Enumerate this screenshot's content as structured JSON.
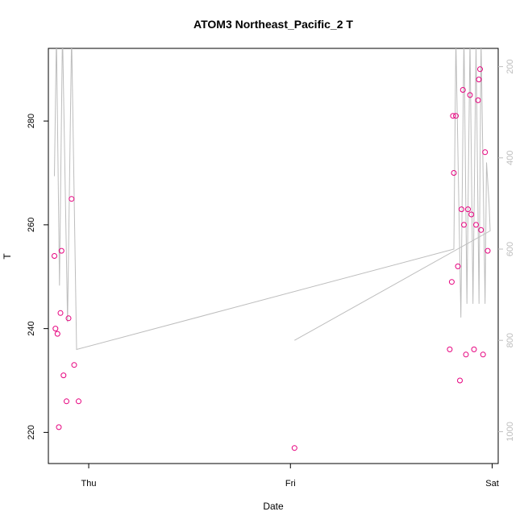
{
  "chart_data": {
    "type": "scatter",
    "title": "ATOM3 Northeast_Pacific_2 T",
    "xlabel": "Date",
    "ylabel": "T",
    "x_ticks": [
      "Thu",
      "Fri",
      "Sat"
    ],
    "xlim": [
      -0.2,
      2.03
    ],
    "ylim": [
      214,
      294
    ],
    "y_ticks": [
      220,
      240,
      260,
      280
    ],
    "grid": false,
    "legend": "none",
    "colors": {
      "points": "#e6007e",
      "line": "#bdbdbd",
      "right_axis": "#bdbdbd"
    },
    "points": [
      {
        "x": -0.17,
        "y": 254
      },
      {
        "x": -0.165,
        "y": 240
      },
      {
        "x": -0.155,
        "y": 239
      },
      {
        "x": -0.148,
        "y": 221
      },
      {
        "x": -0.14,
        "y": 243
      },
      {
        "x": -0.135,
        "y": 255
      },
      {
        "x": -0.125,
        "y": 231
      },
      {
        "x": -0.11,
        "y": 226
      },
      {
        "x": -0.1,
        "y": 242
      },
      {
        "x": -0.085,
        "y": 265
      },
      {
        "x": -0.072,
        "y": 233
      },
      {
        "x": -0.05,
        "y": 226
      },
      {
        "x": 1.02,
        "y": 217
      },
      {
        "x": 1.79,
        "y": 236
      },
      {
        "x": 1.8,
        "y": 249
      },
      {
        "x": 1.806,
        "y": 281
      },
      {
        "x": 1.81,
        "y": 270
      },
      {
        "x": 1.82,
        "y": 281
      },
      {
        "x": 1.83,
        "y": 252
      },
      {
        "x": 1.84,
        "y": 230
      },
      {
        "x": 1.848,
        "y": 263
      },
      {
        "x": 1.855,
        "y": 286
      },
      {
        "x": 1.86,
        "y": 260
      },
      {
        "x": 1.87,
        "y": 235
      },
      {
        "x": 1.88,
        "y": 263
      },
      {
        "x": 1.89,
        "y": 285
      },
      {
        "x": 1.897,
        "y": 262
      },
      {
        "x": 1.91,
        "y": 236
      },
      {
        "x": 1.92,
        "y": 260
      },
      {
        "x": 1.93,
        "y": 284
      },
      {
        "x": 1.934,
        "y": 288
      },
      {
        "x": 1.94,
        "y": 290
      },
      {
        "x": 1.945,
        "y": 259
      },
      {
        "x": 1.955,
        "y": 235
      },
      {
        "x": 1.965,
        "y": 274
      },
      {
        "x": 1.978,
        "y": 255
      }
    ],
    "secondary_axis": {
      "side": "right",
      "reversed": true,
      "ylim": [
        1070,
        160
      ],
      "ticks": [
        200,
        400,
        600,
        800,
        1000
      ]
    },
    "line_series": [
      {
        "x": -0.17,
        "y": 440
      },
      {
        "x": -0.16,
        "y": 130
      },
      {
        "x": -0.145,
        "y": 680
      },
      {
        "x": -0.13,
        "y": 120
      },
      {
        "x": -0.105,
        "y": 760
      },
      {
        "x": -0.085,
        "y": 130
      },
      {
        "x": -0.06,
        "y": 820
      },
      {
        "x": 1.81,
        "y": 600
      },
      {
        "x": 1.82,
        "y": 140
      },
      {
        "x": 1.845,
        "y": 750
      },
      {
        "x": 1.86,
        "y": 130
      },
      {
        "x": 1.875,
        "y": 720
      },
      {
        "x": 1.89,
        "y": 140
      },
      {
        "x": 1.905,
        "y": 720
      },
      {
        "x": 1.92,
        "y": 150
      },
      {
        "x": 1.935,
        "y": 720
      },
      {
        "x": 1.945,
        "y": 140
      },
      {
        "x": 1.965,
        "y": 720
      },
      {
        "x": 1.972,
        "y": 410
      },
      {
        "x": 1.985,
        "y": 500
      },
      {
        "x": 1.99,
        "y": 560
      },
      {
        "x": 1.02,
        "y": 800
      }
    ]
  }
}
